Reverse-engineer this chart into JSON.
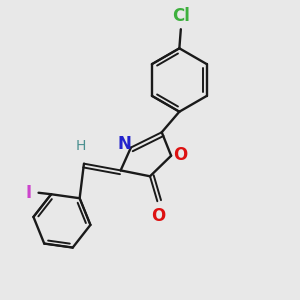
{
  "bg_color": "#e8e8e8",
  "bond_color": "#1a1a1a",
  "atoms": {
    "Cl": {
      "color": "#3db03d",
      "fontsize": 12
    },
    "N": {
      "color": "#2222cc",
      "fontsize": 12
    },
    "O_ring": {
      "color": "#dd1111",
      "fontsize": 12
    },
    "O_carbonyl": {
      "color": "#dd1111",
      "fontsize": 12
    },
    "I": {
      "color": "#cc44cc",
      "fontsize": 12
    },
    "H": {
      "color": "#4a9090",
      "fontsize": 10
    }
  },
  "figsize": [
    3.0,
    3.0
  ],
  "dpi": 100
}
